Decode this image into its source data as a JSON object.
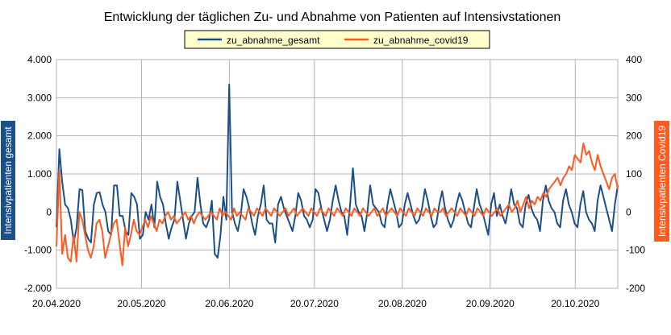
{
  "chart_data": {
    "type": "line",
    "title": "Entwicklung der täglichen Zu- und Abnahme von Patienten auf Intensivstationen",
    "legend_position": "top",
    "grid": true,
    "y_left": {
      "label": "Intensivpatienten gesamt",
      "range": [
        -2000,
        4000
      ],
      "ticks": [
        4000,
        3000,
        2000,
        1000,
        0,
        -1000,
        -2000
      ],
      "tick_labels": [
        "4.000",
        "3.000",
        "2.000",
        "1.000",
        "0",
        "-1.000",
        "-2.000"
      ],
      "label_bg": "#1a4f8a"
    },
    "y_right": {
      "label": "Intensivpatienten Covid19",
      "range": [
        -200,
        400
      ],
      "ticks": [
        400,
        300,
        200,
        100,
        0,
        -100,
        -200
      ],
      "tick_labels": [
        "400",
        "300",
        "200",
        "100",
        "0",
        "-100",
        "-200"
      ],
      "label_bg": "#ff5a1f"
    },
    "x_axis": {
      "range": [
        "2020-04-20",
        "2020-11-04"
      ],
      "tick_labels": [
        "20.04.2020",
        "20.05.2020",
        "20.06.2020",
        "20.07.2020",
        "20.08.2020",
        "20.09.2020",
        "20.10.2020"
      ],
      "tick_dates": [
        "2020-04-20",
        "2020-05-20",
        "2020-06-20",
        "2020-07-20",
        "2020-08-20",
        "2020-09-20",
        "2020-10-20"
      ]
    },
    "series": [
      {
        "name": "zu_abnahme_gesamt",
        "axis": "left",
        "color": "#1a4f8a",
        "values": [
          -400,
          1650,
          800,
          200,
          100,
          -200,
          -800,
          -400,
          600,
          580,
          -500,
          -700,
          -800,
          200,
          500,
          520,
          200,
          0,
          -500,
          -600,
          700,
          700,
          -100,
          -100,
          -500,
          -600,
          500,
          400,
          200,
          -700,
          -600,
          0,
          -200,
          200,
          -400,
          800,
          400,
          200,
          -300,
          -700,
          -400,
          -200,
          800,
          300,
          -200,
          -700,
          -300,
          -100,
          0,
          900,
          200,
          -300,
          -400,
          -200,
          300,
          -1100,
          -1200,
          -600,
          400,
          -200,
          3350,
          0,
          -300,
          -500,
          -100,
          600,
          400,
          100,
          -300,
          -600,
          -100,
          200,
          700,
          -200,
          -300,
          -300,
          -800,
          200,
          400,
          100,
          -100,
          -300,
          -500,
          -100,
          500,
          300,
          -100,
          -200,
          -400,
          -200,
          600,
          500,
          100,
          -200,
          -500,
          -200,
          300,
          700,
          300,
          0,
          -100,
          -600,
          200,
          1150,
          200,
          0,
          -100,
          -500,
          0,
          700,
          200,
          100,
          0,
          -300,
          -400,
          200,
          600,
          300,
          0,
          -400,
          -300,
          200,
          500,
          200,
          -100,
          -300,
          -200,
          100,
          600,
          300,
          -100,
          -400,
          -300,
          200,
          550,
          100,
          -200,
          -400,
          -200,
          200,
          500,
          300,
          0,
          -300,
          -400,
          100,
          600,
          200,
          0,
          -300,
          -600,
          200,
          500,
          -100,
          200,
          -100,
          -300,
          100,
          600,
          200,
          100,
          -300,
          -400,
          200,
          450,
          100,
          -100,
          -200,
          -500,
          300,
          700,
          300,
          100,
          0,
          -300,
          -400,
          300,
          600,
          200,
          0,
          -300,
          -400,
          200,
          550,
          0,
          -200,
          -300,
          -500,
          300,
          700,
          400,
          100,
          -200,
          -500,
          200,
          700
        ]
      },
      {
        "name": "zu_abnahme_covid19",
        "axis": "right",
        "color": "#ff5a1f",
        "values": [
          -90,
          110,
          -110,
          -60,
          -120,
          -130,
          -60,
          -130,
          0,
          -20,
          -60,
          -100,
          -120,
          -90,
          -30,
          -20,
          -50,
          -120,
          -90,
          -60,
          -30,
          -20,
          -80,
          -140,
          -40,
          -90,
          -60,
          -20,
          -50,
          -60,
          -40,
          -20,
          -40,
          -10,
          -30,
          -50,
          -20,
          -30,
          -10,
          0,
          -20,
          -10,
          -30,
          -20,
          -10,
          0,
          -20,
          -10,
          -30,
          -10,
          0,
          -10,
          -20,
          -10,
          0,
          -10,
          -20,
          10,
          -10,
          0,
          -10,
          -20,
          10,
          -10,
          0,
          -10,
          -20,
          10,
          0,
          -10,
          10,
          0,
          -10,
          10,
          0,
          -10,
          10,
          0,
          -10,
          0,
          10,
          -10,
          0,
          10,
          -10,
          0,
          10,
          0,
          -10,
          10,
          0,
          -10,
          10,
          0,
          -10,
          10,
          0,
          -10,
          10,
          0,
          -10,
          10,
          0,
          -10,
          10,
          0,
          -10,
          10,
          0,
          -10,
          0,
          10,
          -10,
          0,
          10,
          -10,
          0,
          10,
          0,
          -10,
          10,
          0,
          -10,
          10,
          0,
          -10,
          10,
          0,
          -10,
          10,
          0,
          -10,
          10,
          0,
          0,
          10,
          -10,
          0,
          10,
          0,
          -10,
          10,
          0,
          -10,
          10,
          0,
          -10,
          10,
          0,
          -10,
          10,
          0,
          -10,
          0,
          10,
          -10,
          0,
          10,
          20,
          0,
          10,
          30,
          0,
          20,
          40,
          10,
          30,
          20,
          40,
          30,
          50,
          40,
          60,
          70,
          80,
          90,
          70,
          90,
          100,
          120,
          110,
          150,
          140,
          130,
          180,
          150,
          160,
          130,
          110,
          150,
          120,
          100,
          80,
          60,
          90,
          100,
          60
        ]
      }
    ]
  }
}
